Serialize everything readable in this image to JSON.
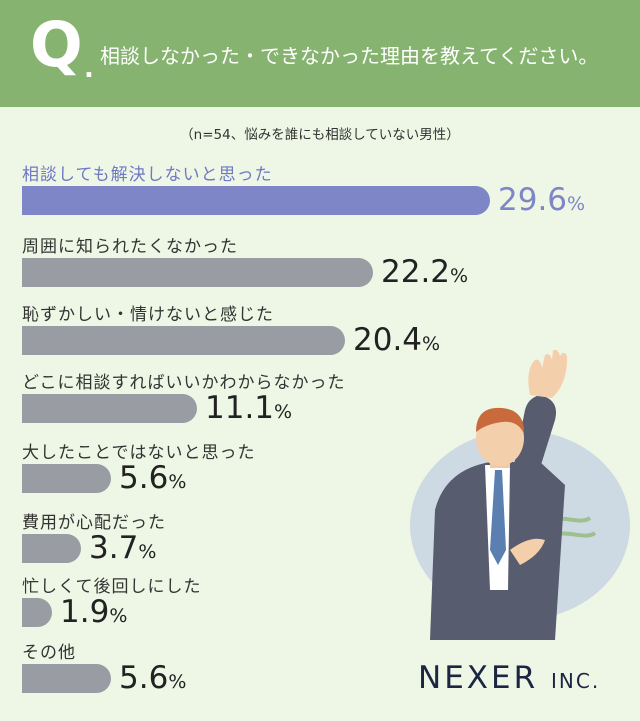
{
  "header": {
    "q_letter": "Q",
    "q_dot": ".",
    "question": "相談しなかった・できなかった理由を教えてください。"
  },
  "note": "（n=54、悩みを誰にも相談していない男性）",
  "chart_data": {
    "type": "bar",
    "orientation": "horizontal",
    "unit": "%",
    "categories": [
      "相談しても解決しないと思った",
      "周囲に知られたくなかった",
      "恥ずかしい・情けないと感じた",
      "どこに相談すればいいかわからなかった",
      "大したことではないと思った",
      "費用が心配だった",
      "忙しくて後回しにした",
      "その他"
    ],
    "values": [
      29.6,
      22.2,
      20.4,
      11.1,
      5.6,
      3.7,
      1.9,
      5.6
    ],
    "value_labels": [
      "29.6",
      "22.2",
      "20.4",
      "11.1",
      "5.6",
      "3.7",
      "1.9",
      "5.6"
    ],
    "highlight_index": 0,
    "colors": {
      "highlight": "#7e86c7",
      "default": "#9a9ca3"
    }
  },
  "logo": {
    "name": "NEXER",
    "suffix": "INC."
  }
}
